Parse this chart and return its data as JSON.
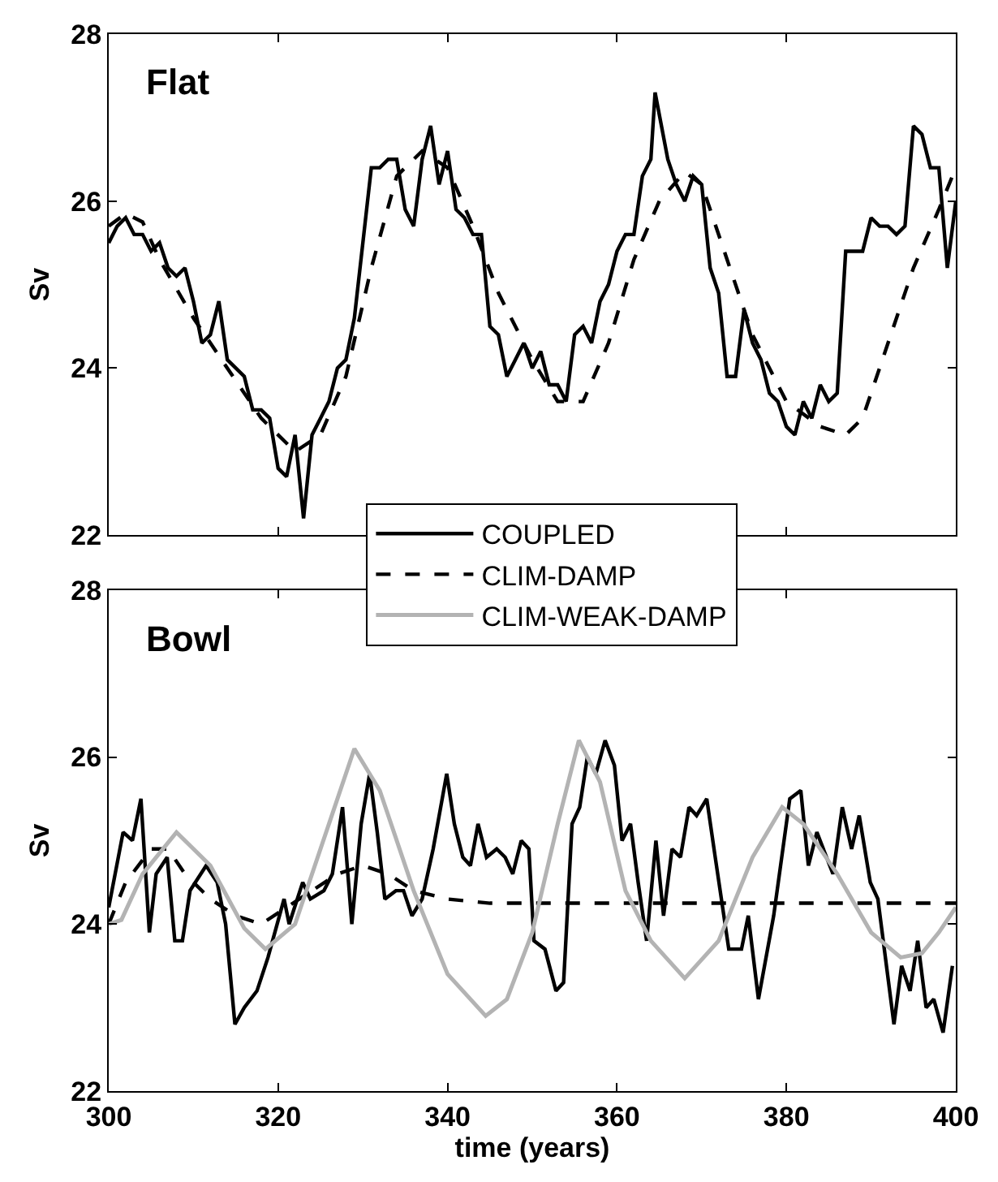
{
  "chart_data": [
    {
      "type": "line",
      "annotations": [
        "Flat"
      ],
      "ylabel": "Sv",
      "xlim": [
        300,
        400
      ],
      "xticks": [
        300,
        320,
        340,
        360,
        380,
        400
      ],
      "ylim": [
        22,
        28
      ],
      "yticks": [
        22,
        24,
        26,
        28
      ],
      "tick_labels": "y",
      "legend": false,
      "series": [
        {
          "color": "#000000",
          "line_style": "solid",
          "x": [
            300,
            301,
            302,
            303,
            304,
            305,
            306,
            307,
            308,
            309,
            310,
            311,
            312,
            313,
            314,
            315,
            316,
            317,
            318,
            319,
            320,
            321,
            322,
            323,
            324,
            325,
            326,
            327,
            328,
            329,
            330,
            331,
            332,
            333,
            334,
            335,
            336,
            337,
            338,
            339,
            340,
            341,
            342,
            343,
            344,
            345,
            346,
            347,
            348,
            349,
            350,
            351,
            352,
            353,
            354,
            355,
            356,
            357,
            358,
            359,
            360,
            361,
            362,
            363,
            364,
            364.5,
            366,
            367,
            368,
            369,
            370,
            371,
            372,
            373,
            374,
            375,
            376,
            377,
            378,
            379,
            380,
            381,
            382,
            383,
            384,
            385,
            386,
            387,
            388,
            389,
            390,
            391,
            392,
            393,
            394,
            395,
            396,
            397,
            398,
            399,
            400
          ],
          "values": [
            25.5,
            25.7,
            25.8,
            25.6,
            25.6,
            25.4,
            25.5,
            25.2,
            25.1,
            25.2,
            24.8,
            24.3,
            24.4,
            24.8,
            24.1,
            24.0,
            23.9,
            23.5,
            23.5,
            23.4,
            22.8,
            22.7,
            23.2,
            22.2,
            23.2,
            23.4,
            23.6,
            24.0,
            24.1,
            24.6,
            25.5,
            26.4,
            26.4,
            26.5,
            26.5,
            25.9,
            25.7,
            26.5,
            26.9,
            26.2,
            26.6,
            25.9,
            25.8,
            25.6,
            25.6,
            24.5,
            24.4,
            23.9,
            24.1,
            24.3,
            24.0,
            24.2,
            23.8,
            23.8,
            23.6,
            24.4,
            24.5,
            24.3,
            24.8,
            25.0,
            25.4,
            25.6,
            25.6,
            26.3,
            26.5,
            27.3,
            26.5,
            26.2,
            26.0,
            26.3,
            26.2,
            25.2,
            24.9,
            23.9,
            23.9,
            24.7,
            24.3,
            24.1,
            23.7,
            23.6,
            23.3,
            23.2,
            23.6,
            23.4,
            23.8,
            23.6,
            23.7,
            25.4,
            25.4,
            25.4,
            25.8,
            25.7,
            25.7,
            25.6,
            25.7,
            26.9,
            26.8,
            26.4,
            26.4,
            25.2,
            26.0
          ]
        },
        {
          "color": "#000000",
          "line_style": "dashed",
          "x": [
            300,
            302,
            304,
            306,
            310,
            314,
            318,
            322,
            325,
            328,
            331,
            334,
            337,
            340,
            343,
            346,
            350,
            353,
            356,
            359,
            362,
            365,
            368,
            370,
            373,
            376,
            380,
            384,
            387,
            389,
            392,
            395,
            398,
            400
          ],
          "values": [
            25.7,
            25.85,
            25.75,
            25.3,
            24.6,
            24.0,
            23.4,
            23.0,
            23.2,
            23.9,
            25.2,
            26.3,
            26.6,
            26.4,
            25.7,
            24.9,
            24.1,
            23.6,
            23.6,
            24.3,
            25.3,
            26.0,
            26.35,
            26.2,
            25.3,
            24.4,
            23.6,
            23.3,
            23.2,
            23.4,
            24.3,
            25.2,
            25.9,
            26.4
          ]
        }
      ]
    },
    {
      "type": "line",
      "annotations": [
        "Bowl"
      ],
      "xlabel": "time (years)",
      "ylabel": "Sv",
      "xlim": [
        300,
        400
      ],
      "xticks": [
        300,
        320,
        340,
        360,
        380,
        400
      ],
      "ylim": [
        22,
        28
      ],
      "yticks": [
        22,
        24,
        26,
        28
      ],
      "legend": "top",
      "series": [
        {
          "name": "COUPLED",
          "color": "#000000",
          "line_style": "solid",
          "x": [
            300,
            301.7,
            302.8,
            303.8,
            304.8,
            305.6,
            306.9,
            307.8,
            308.7,
            309.6,
            311.5,
            312.8,
            313.8,
            314.9,
            316,
            317.5,
            318.8,
            320.7,
            321.3,
            322.9,
            323.8,
            325.4,
            326.4,
            327.6,
            328.7,
            329.8,
            330.8,
            331.7,
            332.6,
            333.9,
            334.8,
            335.8,
            337,
            338.3,
            339.9,
            340.8,
            341.8,
            342.7,
            343.6,
            344.6,
            345.8,
            346.8,
            347.7,
            348.7,
            349.6,
            350.2,
            351.5,
            352.8,
            353.7,
            354.7,
            355.6,
            356.5,
            357.5,
            358.6,
            359.7,
            360.6,
            361.6,
            362.5,
            363.5,
            364.6,
            365.5,
            366.5,
            367.5,
            368.5,
            369.4,
            370.6,
            371.6,
            373.2,
            374.7,
            375.5,
            376.7,
            378.5,
            380.4,
            381.7,
            382.6,
            383.6,
            385.5,
            386.6,
            387.7,
            388.6,
            389.9,
            390.8,
            392.7,
            393.6,
            394.6,
            395.5,
            396.5,
            397.4,
            398.5,
            399.6
          ],
          "values": [
            24.2,
            25.1,
            25.0,
            25.5,
            23.9,
            24.6,
            24.8,
            23.8,
            23.8,
            24.4,
            24.7,
            24.5,
            24.0,
            22.8,
            23.0,
            23.2,
            23.6,
            24.3,
            24.0,
            24.5,
            24.3,
            24.4,
            24.6,
            25.4,
            24.0,
            25.2,
            25.8,
            25.1,
            24.3,
            24.4,
            24.4,
            24.1,
            24.3,
            24.9,
            25.8,
            25.2,
            24.8,
            24.7,
            25.2,
            24.8,
            24.9,
            24.8,
            24.6,
            25.0,
            24.9,
            23.8,
            23.7,
            23.2,
            23.3,
            25.2,
            25.4,
            26.0,
            25.8,
            26.2,
            25.9,
            25.0,
            25.2,
            24.5,
            23.8,
            25.0,
            24.1,
            24.9,
            24.8,
            25.4,
            25.3,
            25.5,
            24.8,
            23.7,
            23.7,
            24.1,
            23.1,
            24.1,
            25.5,
            25.6,
            24.7,
            25.1,
            24.6,
            25.4,
            24.9,
            25.3,
            24.5,
            24.3,
            22.8,
            23.5,
            23.2,
            23.8,
            23.0,
            23.1,
            22.7,
            23.5
          ]
        },
        {
          "name": "CLIM-DAMP",
          "color": "#000000",
          "line_style": "dashed",
          "x": [
            300,
            302,
            305,
            307,
            309,
            312,
            315,
            318,
            321,
            324,
            327,
            330,
            333,
            336,
            340,
            345,
            350,
            360,
            370,
            380,
            390,
            400
          ],
          "values": [
            24.0,
            24.5,
            24.9,
            24.9,
            24.6,
            24.3,
            24.1,
            24.0,
            24.2,
            24.4,
            24.6,
            24.7,
            24.6,
            24.4,
            24.3,
            24.25,
            24.25,
            24.25,
            24.25,
            24.25,
            24.25,
            24.25
          ]
        },
        {
          "name": "CLIM-WEAK-DAMP",
          "color": "#b3b3b3",
          "line_style": "solid",
          "x": [
            300,
            301.5,
            304,
            308,
            312,
            316,
            318.5,
            322,
            326,
            329,
            332,
            336,
            340,
            344.5,
            347,
            350,
            353,
            355.5,
            358,
            361,
            364,
            368,
            372,
            376,
            379.5,
            382,
            386,
            390,
            393.5,
            396,
            398,
            400
          ],
          "values": [
            24.0,
            24.05,
            24.6,
            25.1,
            24.7,
            23.95,
            23.7,
            24.0,
            25.2,
            26.1,
            25.6,
            24.4,
            23.4,
            22.9,
            23.1,
            23.9,
            25.2,
            26.2,
            25.7,
            24.4,
            23.8,
            23.35,
            23.8,
            24.8,
            25.4,
            25.2,
            24.6,
            23.9,
            23.6,
            23.65,
            23.9,
            24.2
          ]
        }
      ]
    }
  ]
}
